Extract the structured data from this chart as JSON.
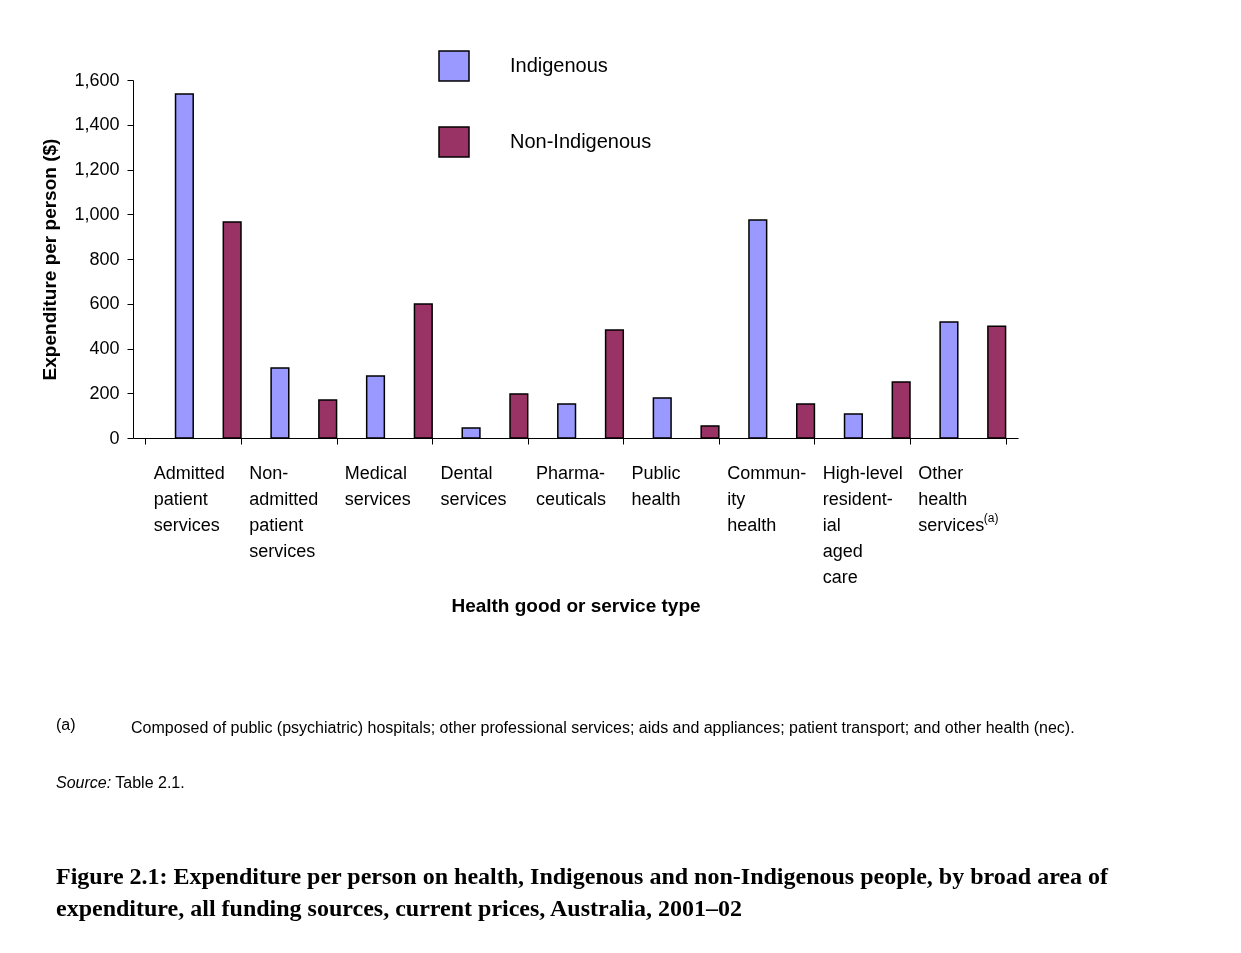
{
  "chart_data": {
    "type": "bar",
    "xlabel": "Health good or service type",
    "ylabel": "Expenditure per person ($)",
    "categories": [
      "Admitted patient services",
      "Non- admitted patient services",
      "Medical services",
      "Dental services",
      "Pharma- ceuticals",
      "Public health",
      "Commun- ity health",
      "High-level resident- ial aged care",
      "Other health services$^{(a)}$"
    ],
    "series": [
      {
        "name": "Indigenous",
        "color": "#9999ff",
        "values": [
          1537,
          313,
          277,
          45,
          152,
          179,
          974,
          107,
          518
        ]
      },
      {
        "name": "Non-Indigenous",
        "color": "#993366",
        "values": [
          965,
          170,
          599,
          197,
          483,
          54,
          152,
          250,
          500
        ]
      }
    ],
    "ylim": [
      0,
      1600
    ],
    "yticks": [
      0,
      200,
      400,
      600,
      800,
      {
        "value": 1000,
        "label": "1,000"
      },
      {
        "value": 1200,
        "label": "1,200"
      },
      {
        "value": 1400,
        "label": "1,400"
      },
      {
        "value": 1600,
        "label": "1,600"
      }
    ],
    "grid": false,
    "legend": "top",
    "annotations": [
      "(a)\tComposed of public (psychiatric) hospitals; other professional services; aids and appliances; patient transport; and other health (nec).",
      "Source: Table 2.1."
    ],
    "title": "Figure 2.1: Expenditure per person on health, Indigenous and non-Indigenous people, by broad area of expenditure, all funding sources, current prices, Australia, 2001–02"
  }
}
